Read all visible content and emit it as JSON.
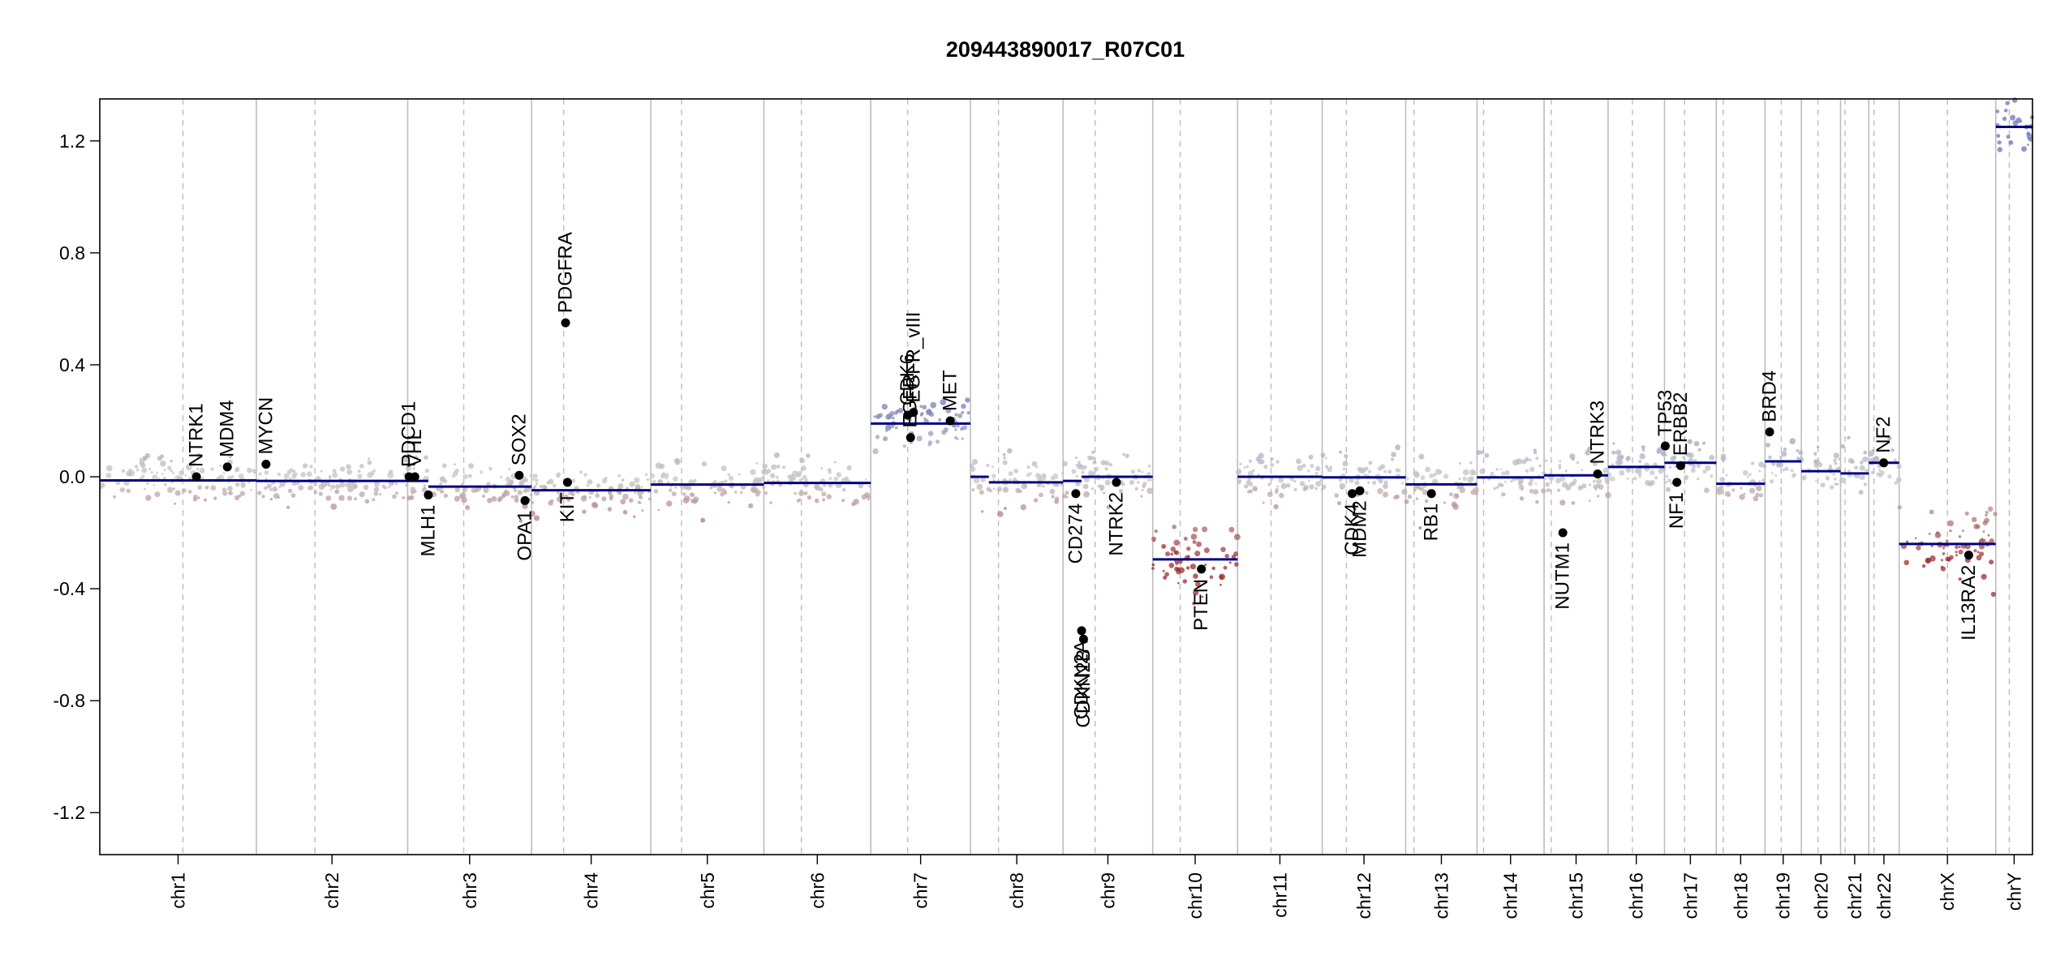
{
  "chart_data": {
    "type": "scatter",
    "title": "209443890017_R07C01",
    "xlabel": "",
    "ylabel": "",
    "ylim": [
      -1.35,
      1.35
    ],
    "yticks": [
      {
        "value": 1.2,
        "label": "1.2"
      },
      {
        "value": 0.8,
        "label": "0.8"
      },
      {
        "value": 0.4,
        "label": "0.4"
      },
      {
        "value": 0.0,
        "label": "0.0"
      },
      {
        "value": -0.4,
        "label": "-0.4"
      },
      {
        "value": -0.8,
        "label": "-0.8"
      },
      {
        "value": -1.2,
        "label": "-1.2"
      }
    ],
    "grid": false,
    "legend": "none",
    "colors": {
      "gain": "#7b7fbf",
      "neutral": "#c8c8c8",
      "loss": "#a23a3a",
      "segment": "#000080",
      "boundary": "#bdbdbd",
      "gene_point": "#000000"
    },
    "chromosomes": [
      {
        "name": "chr1",
        "start": 0.0,
        "end": 0.081,
        "centromere": 0.043
      },
      {
        "name": "chr2",
        "start": 0.081,
        "end": 0.1593,
        "centromere": 0.1113
      },
      {
        "name": "chr3",
        "start": 0.1593,
        "end": 0.2234,
        "centromere": 0.1883
      },
      {
        "name": "chr4",
        "start": 0.2234,
        "end": 0.2851,
        "centromere": 0.24
      },
      {
        "name": "chr5",
        "start": 0.2851,
        "end": 0.3436,
        "centromere": 0.301
      },
      {
        "name": "chr6",
        "start": 0.3436,
        "end": 0.3989,
        "centromere": 0.363
      },
      {
        "name": "chr7",
        "start": 0.3989,
        "end": 0.4505,
        "centromere": 0.418
      },
      {
        "name": "chr8",
        "start": 0.4505,
        "end": 0.4984,
        "centromere": 0.465
      },
      {
        "name": "chr9",
        "start": 0.4984,
        "end": 0.5448,
        "centromere": 0.515
      },
      {
        "name": "chr10",
        "start": 0.5448,
        "end": 0.5887,
        "centromere": 0.559
      },
      {
        "name": "chr11",
        "start": 0.5887,
        "end": 0.6325,
        "centromere": 0.606
      },
      {
        "name": "chr12",
        "start": 0.6325,
        "end": 0.6757,
        "centromere": 0.645
      },
      {
        "name": "chr13",
        "start": 0.6757,
        "end": 0.7126,
        "centromere": 0.68
      },
      {
        "name": "chr14",
        "start": 0.7126,
        "end": 0.7473,
        "centromere": 0.716
      },
      {
        "name": "chr15",
        "start": 0.7473,
        "end": 0.7804,
        "centromere": 0.751
      },
      {
        "name": "chr16",
        "start": 0.7804,
        "end": 0.8096,
        "centromere": 0.793
      },
      {
        "name": "chr17",
        "start": 0.8096,
        "end": 0.8364,
        "centromere": 0.82
      },
      {
        "name": "chr18",
        "start": 0.8364,
        "end": 0.8616,
        "centromere": 0.84
      },
      {
        "name": "chr19",
        "start": 0.8616,
        "end": 0.8804,
        "centromere": 0.87
      },
      {
        "name": "chr20",
        "start": 0.8804,
        "end": 0.9007,
        "centromere": 0.889
      },
      {
        "name": "chr21",
        "start": 0.9007,
        "end": 0.9153,
        "centromere": 0.903
      },
      {
        "name": "chr22",
        "start": 0.9153,
        "end": 0.931,
        "centromere": 0.918
      },
      {
        "name": "chrX",
        "start": 0.931,
        "end": 0.981,
        "centromere": 0.956
      },
      {
        "name": "chrY",
        "start": 0.981,
        "end": 1.0,
        "centromere": 0.988
      }
    ],
    "segments": [
      {
        "x0": 0.0,
        "x1": 0.081,
        "y": -0.013
      },
      {
        "x0": 0.081,
        "x1": 0.1593,
        "y": -0.015
      },
      {
        "x0": 0.1593,
        "x1": 0.17,
        "y": -0.015
      },
      {
        "x0": 0.17,
        "x1": 0.2234,
        "y": -0.035
      },
      {
        "x0": 0.2234,
        "x1": 0.2851,
        "y": -0.048
      },
      {
        "x0": 0.2851,
        "x1": 0.3436,
        "y": -0.028
      },
      {
        "x0": 0.3436,
        "x1": 0.3989,
        "y": -0.022
      },
      {
        "x0": 0.3989,
        "x1": 0.443,
        "y": 0.19
      },
      {
        "x0": 0.443,
        "x1": 0.4505,
        "y": 0.19
      },
      {
        "x0": 0.4505,
        "x1": 0.46,
        "y": 0.0
      },
      {
        "x0": 0.46,
        "x1": 0.4984,
        "y": -0.02
      },
      {
        "x0": 0.4984,
        "x1": 0.508,
        "y": -0.015
      },
      {
        "x0": 0.508,
        "x1": 0.5448,
        "y": 0.0
      },
      {
        "x0": 0.5448,
        "x1": 0.5887,
        "y": -0.295
      },
      {
        "x0": 0.5887,
        "x1": 0.6325,
        "y": 0.0
      },
      {
        "x0": 0.6325,
        "x1": 0.6757,
        "y": -0.002
      },
      {
        "x0": 0.6757,
        "x1": 0.7126,
        "y": -0.027
      },
      {
        "x0": 0.7126,
        "x1": 0.7473,
        "y": -0.002
      },
      {
        "x0": 0.7473,
        "x1": 0.7804,
        "y": 0.005
      },
      {
        "x0": 0.7804,
        "x1": 0.8096,
        "y": 0.035
      },
      {
        "x0": 0.8096,
        "x1": 0.8364,
        "y": 0.05
      },
      {
        "x0": 0.8364,
        "x1": 0.8616,
        "y": -0.025
      },
      {
        "x0": 0.8616,
        "x1": 0.8804,
        "y": 0.055
      },
      {
        "x0": 0.8804,
        "x1": 0.9007,
        "y": 0.02
      },
      {
        "x0": 0.9007,
        "x1": 0.9153,
        "y": 0.012
      },
      {
        "x0": 0.9153,
        "x1": 0.931,
        "y": 0.05
      },
      {
        "x0": 0.931,
        "x1": 0.981,
        "y": -0.24
      },
      {
        "x0": 0.981,
        "x1": 1.0,
        "y": 1.25
      }
    ],
    "genes": [
      {
        "name": "NTRK1",
        "x": 0.05,
        "y": 0.0,
        "label_pos": "above"
      },
      {
        "name": "MDM4",
        "x": 0.066,
        "y": 0.035,
        "label_pos": "above"
      },
      {
        "name": "MYCN",
        "x": 0.086,
        "y": 0.045,
        "label_pos": "above"
      },
      {
        "name": "PDCD1",
        "x": 0.16,
        "y": 0.0,
        "label_pos": "above"
      },
      {
        "name": "VHL",
        "x": 0.163,
        "y": 0.0,
        "label_pos": "above"
      },
      {
        "name": "MLH1",
        "x": 0.17,
        "y": -0.065,
        "label_pos": "below"
      },
      {
        "name": "SOX2",
        "x": 0.217,
        "y": 0.005,
        "label_pos": "above"
      },
      {
        "name": "OPA1",
        "x": 0.22,
        "y": -0.085,
        "label_pos": "below"
      },
      {
        "name": "PDGFRA",
        "x": 0.241,
        "y": 0.55,
        "label_pos": "above"
      },
      {
        "name": "KIT",
        "x": 0.242,
        "y": -0.02,
        "label_pos": "below"
      },
      {
        "name": "CDK6",
        "x": 0.418,
        "y": 0.22,
        "label_pos": "above"
      },
      {
        "name": "EGFR",
        "x": 0.4195,
        "y": 0.14,
        "label_pos": "above"
      },
      {
        "name": "EGFR_vIII",
        "x": 0.421,
        "y": 0.23,
        "label_pos": "above"
      },
      {
        "name": "MET",
        "x": 0.44,
        "y": 0.2,
        "label_pos": "above"
      },
      {
        "name": "CD274",
        "x": 0.505,
        "y": -0.06,
        "label_pos": "below"
      },
      {
        "name": "CDKN2A",
        "x": 0.508,
        "y": -0.55,
        "label_pos": "below"
      },
      {
        "name": "CDKN2B",
        "x": 0.509,
        "y": -0.58,
        "label_pos": "below"
      },
      {
        "name": "NTRK2",
        "x": 0.526,
        "y": -0.02,
        "label_pos": "below"
      },
      {
        "name": "PTEN",
        "x": 0.57,
        "y": -0.33,
        "label_pos": "below"
      },
      {
        "name": "CDK4",
        "x": 0.648,
        "y": -0.06,
        "label_pos": "below"
      },
      {
        "name": "MDM2",
        "x": 0.652,
        "y": -0.05,
        "label_pos": "below"
      },
      {
        "name": "RB1",
        "x": 0.689,
        "y": -0.06,
        "label_pos": "below"
      },
      {
        "name": "NUTM1",
        "x": 0.757,
        "y": -0.2,
        "label_pos": "below"
      },
      {
        "name": "NTRK3",
        "x": 0.775,
        "y": 0.01,
        "label_pos": "above"
      },
      {
        "name": "TP53",
        "x": 0.81,
        "y": 0.11,
        "label_pos": "above"
      },
      {
        "name": "ERBB2",
        "x": 0.818,
        "y": 0.04,
        "label_pos": "above"
      },
      {
        "name": "NF1",
        "x": 0.816,
        "y": -0.02,
        "label_pos": "below"
      },
      {
        "name": "BRD4",
        "x": 0.864,
        "y": 0.16,
        "label_pos": "above"
      },
      {
        "name": "NF2",
        "x": 0.923,
        "y": 0.05,
        "label_pos": "above"
      },
      {
        "name": "IL13RA2",
        "x": 0.967,
        "y": -0.28,
        "label_pos": "below"
      }
    ]
  }
}
